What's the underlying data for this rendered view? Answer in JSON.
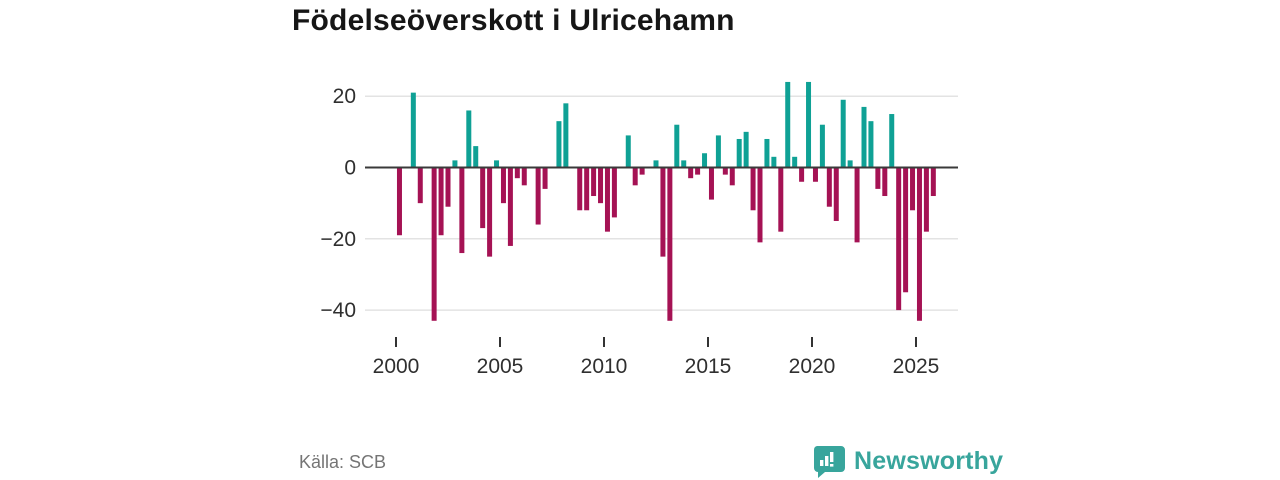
{
  "title": "Födelseöverskott i Ulricehamn",
  "source": "Källa: SCB",
  "brand": {
    "name": "Newsworthy",
    "color": "#38a59c"
  },
  "chart_data": {
    "type": "bar",
    "title": "Födelseöverskott i Ulricehamn",
    "xlabel": "",
    "ylabel": "",
    "x_tick_labels": [
      "2000",
      "2005",
      "2010",
      "2015",
      "2020",
      "2025"
    ],
    "y_ticks": [
      20,
      0,
      -20,
      -40
    ],
    "y_tick_labels": [
      "20",
      "0",
      "−20",
      "−40"
    ],
    "ylim": [
      -47,
      26
    ],
    "start_year": 2000,
    "end_year": 2025,
    "periods_per_year": 3,
    "grid": "horizontal",
    "legend": "none",
    "colors": {
      "positive": "#0fa195",
      "negative": "#a51254"
    },
    "series": [
      {
        "name": "Födelseöverskott",
        "values": [
          -19,
          0,
          21,
          -10,
          0,
          -43,
          -19,
          -11,
          2,
          -24,
          16,
          6,
          -17,
          -25,
          2,
          -10,
          -22,
          -3,
          -5,
          0,
          -16,
          -6,
          0,
          13,
          18,
          0,
          -12,
          -12,
          -8,
          -10,
          -18,
          -14,
          0,
          9,
          -5,
          -2,
          0,
          2,
          -25,
          -43,
          12,
          2,
          -3,
          -2,
          4,
          -9,
          9,
          -2,
          -5,
          8,
          10,
          -12,
          -21,
          8,
          3,
          -18,
          24,
          3,
          -4,
          24,
          -4,
          12,
          -11,
          -15,
          19,
          2,
          -21,
          17,
          13,
          -6,
          -8,
          15,
          -40,
          -35,
          -12,
          -43,
          -18,
          -8
        ]
      }
    ]
  }
}
